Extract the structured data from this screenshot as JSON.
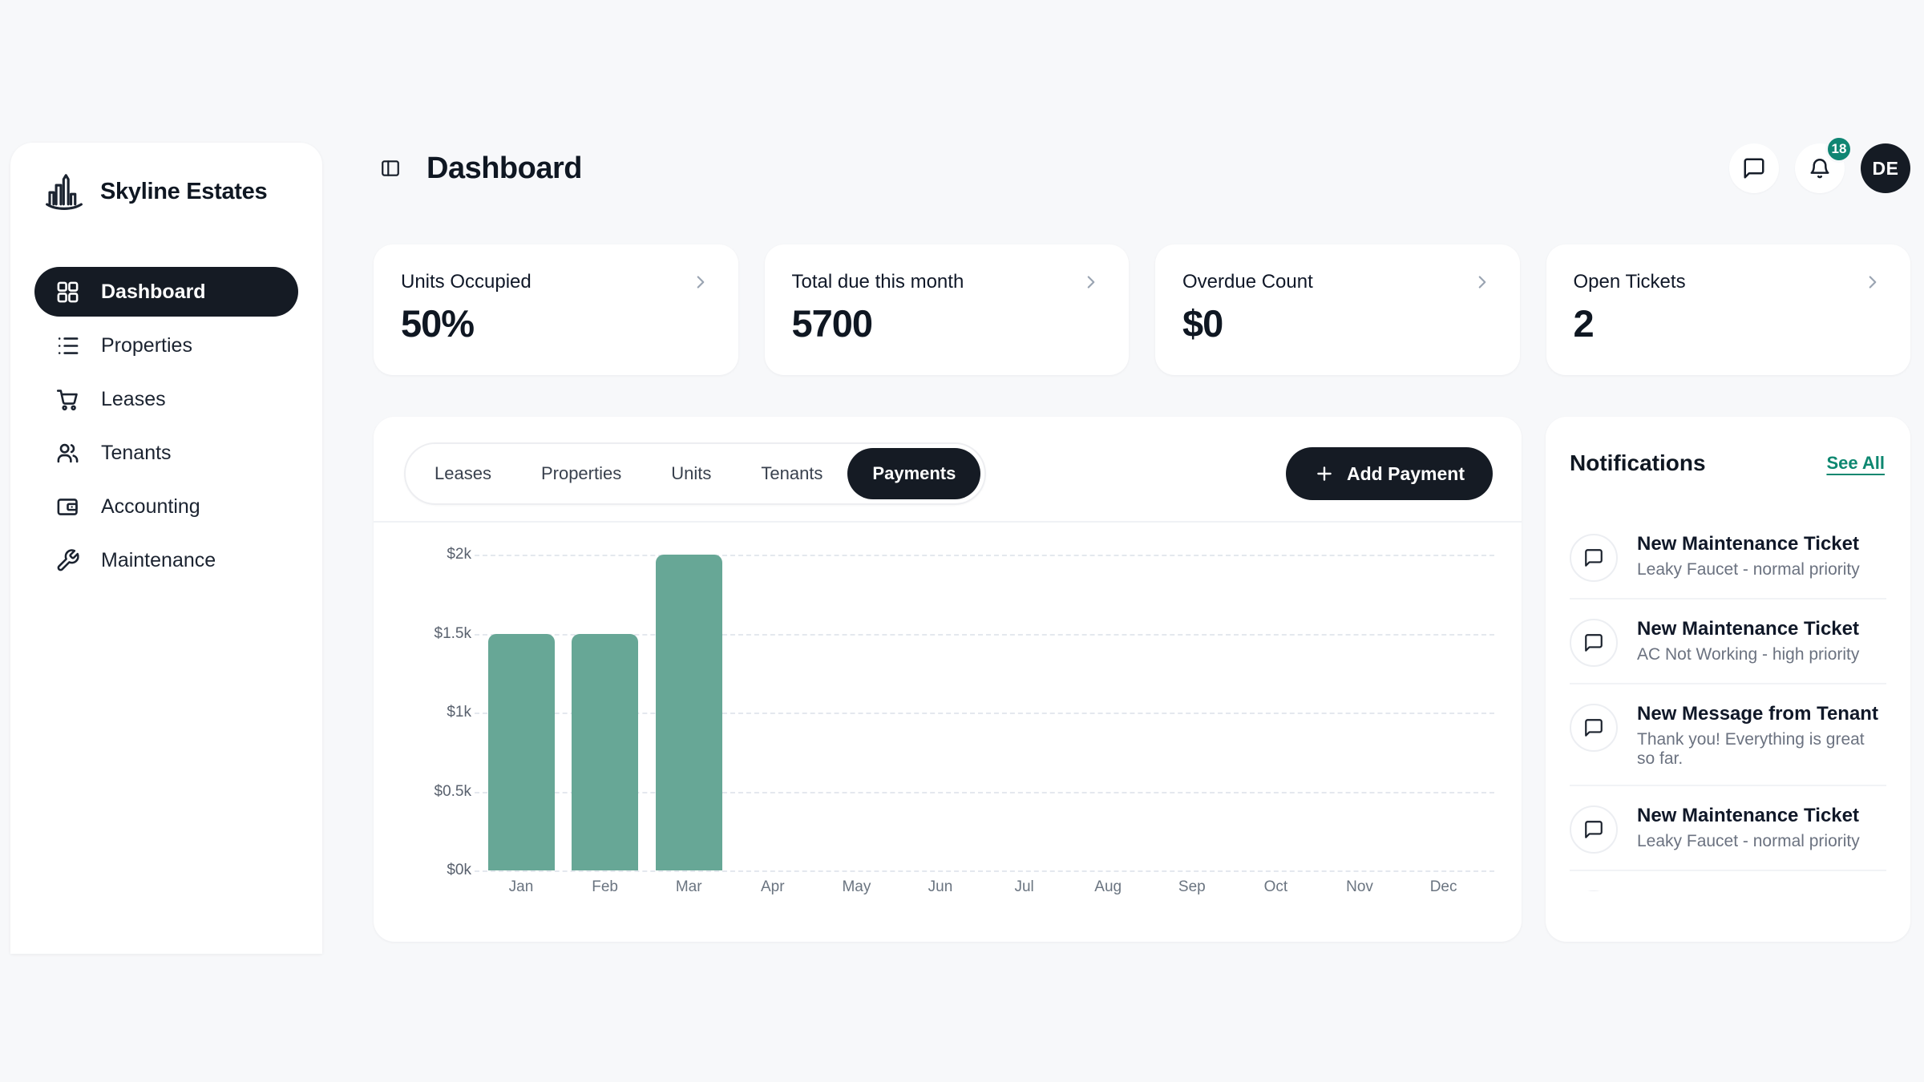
{
  "brand": {
    "name": "Skyline Estates"
  },
  "sidebar": {
    "items": [
      {
        "label": "Dashboard",
        "icon": "grid",
        "active": true
      },
      {
        "label": "Properties",
        "icon": "list",
        "active": false
      },
      {
        "label": "Leases",
        "icon": "cart",
        "active": false
      },
      {
        "label": "Tenants",
        "icon": "users",
        "active": false
      },
      {
        "label": "Accounting",
        "icon": "wallet",
        "active": false
      },
      {
        "label": "Maintenance",
        "icon": "wrench",
        "active": false
      }
    ]
  },
  "header": {
    "title": "Dashboard",
    "notification_count": "18",
    "avatar_initials": "DE"
  },
  "stats": [
    {
      "label": "Units Occupied",
      "value": "50%"
    },
    {
      "label": "Total due this month",
      "value": "5700"
    },
    {
      "label": "Overdue Count",
      "value": "$0"
    },
    {
      "label": "Open Tickets",
      "value": "2"
    }
  ],
  "toolbar": {
    "tabs": [
      {
        "label": "Leases",
        "active": false
      },
      {
        "label": "Properties",
        "active": false
      },
      {
        "label": "Units",
        "active": false
      },
      {
        "label": "Tenants",
        "active": false
      },
      {
        "label": "Payments",
        "active": true
      }
    ],
    "add_payment_label": "Add Payment"
  },
  "chart_data": {
    "type": "bar",
    "categories": [
      "Jan",
      "Feb",
      "Mar",
      "Apr",
      "May",
      "Jun",
      "Jul",
      "Aug",
      "Sep",
      "Oct",
      "Nov",
      "Dec"
    ],
    "values": [
      1500,
      1500,
      2000,
      0,
      0,
      0,
      0,
      0,
      0,
      0,
      0,
      0
    ],
    "title": "",
    "xlabel": "",
    "ylabel": "",
    "ylim": [
      0,
      2000
    ],
    "yticks": [
      "$0k",
      "$0.5k",
      "$1k",
      "$1.5k",
      "$2k"
    ],
    "grid": "dashed-horizontal",
    "legend": "none",
    "bar_color": "#67a796"
  },
  "notifications": {
    "title": "Notifications",
    "see_all_label": "See All",
    "items": [
      {
        "title": "New Maintenance Ticket",
        "subtitle": "Leaky Faucet - normal priority"
      },
      {
        "title": "New Maintenance Ticket",
        "subtitle": "AC Not Working - high priority"
      },
      {
        "title": "New Message from Tenant",
        "subtitle": "Thank you! Everything is great so far."
      },
      {
        "title": "New Maintenance Ticket",
        "subtitle": "Leaky Faucet - normal priority"
      }
    ],
    "partial_fifth_item": true
  },
  "colors": {
    "background": "#f7f8fa",
    "dark_pill": "#151b24",
    "badge_teal": "#0f8573",
    "link_teal": "#0d8770",
    "bar_teal": "#67a796"
  }
}
